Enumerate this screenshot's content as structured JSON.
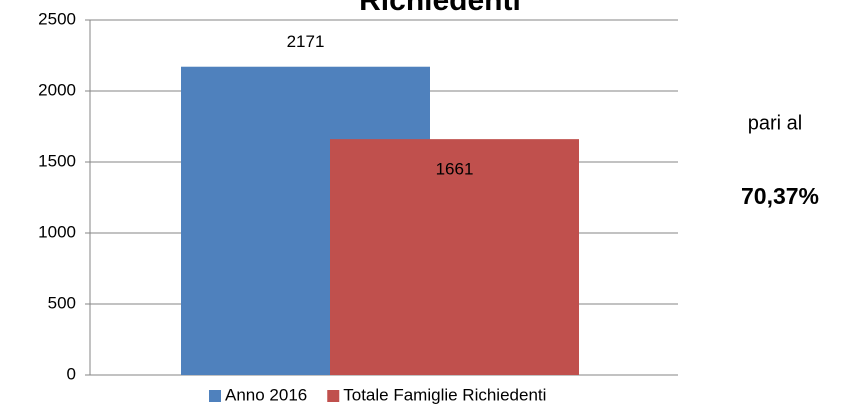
{
  "chart_data": {
    "type": "bar",
    "title": "Richiedenti",
    "categories": [
      null
    ],
    "series": [
      {
        "name": "Anno 2016",
        "color": "#4f81bd",
        "values": [
          2171
        ]
      },
      {
        "name": "Totale Famiglie Richiedenti",
        "color": "#c0504d",
        "values": [
          1661
        ]
      }
    ],
    "ylim": [
      0,
      2500
    ],
    "yticks": [
      0,
      500,
      1000,
      1500,
      2000,
      2500
    ],
    "grid": true,
    "legend": "bottom",
    "annotations": [
      "pari al",
      "70,37%"
    ]
  }
}
